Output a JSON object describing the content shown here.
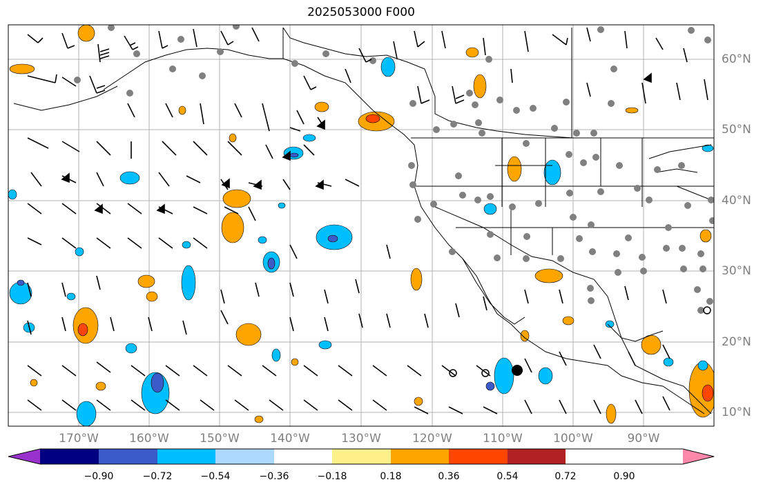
{
  "title": "2025053000 F000",
  "lat_labels": [
    "60°N",
    "50°N",
    "40°N",
    "30°N",
    "20°N",
    "10°N"
  ],
  "lon_labels": [
    "170°W",
    "160°W",
    "150°W",
    "140°W",
    "130°W",
    "120°W",
    "110°W",
    "100°W",
    "90°W"
  ],
  "colorbar": {
    "ticks": [
      "−0.90",
      "−0.72",
      "−0.54",
      "−0.36",
      "−0.18",
      "0.18",
      "0.36",
      "0.54",
      "0.72",
      "0.90"
    ],
    "colors": [
      "#9932cc",
      "#000080",
      "#3a5bc8",
      "#00bfff",
      "#add8ff",
      "#ffffff",
      "#fff08c",
      "#ffa500",
      "#ff4500",
      "#b22222",
      "#ff88aa"
    ]
  }
}
